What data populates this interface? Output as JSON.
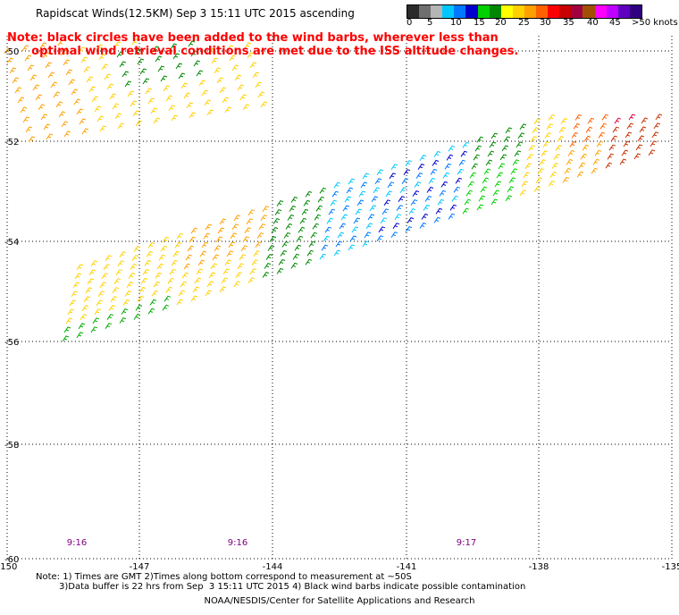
{
  "title": "Rapidscat Winds(12.5KM) Sep  3 15:11 UTC 2015 ascending",
  "note": "Note: black circles have been added to the wind barbs, wherever less than\n      optimal wind retrieval conditions are met due to the ISS altitude changes.",
  "legend": {
    "labels": [
      "0",
      "5",
      "10",
      "15",
      "20",
      "25",
      "30",
      "35",
      "40",
      "45",
      ">50 knots"
    ],
    "colors": [
      "#2b2b2b",
      "#6f6f6f",
      "#b5b5b5",
      "#00c8ff",
      "#0078ff",
      "#0000cc",
      "#00d000",
      "#008800",
      "#ffff00",
      "#ffd000",
      "#ffa000",
      "#ff6000",
      "#ff0000",
      "#c80000",
      "#a00040",
      "#a05000",
      "#ff00ff",
      "#c000ff",
      "#6000c0",
      "#300080"
    ]
  },
  "axes": {
    "lon_ticks": [
      "-150",
      "-147",
      "-144",
      "-141",
      "-138",
      "-135"
    ],
    "lat_ticks": [
      "-50",
      "-52",
      "-54",
      "-56",
      "-58",
      "-60"
    ],
    "lon_range": [
      -150,
      -135
    ],
    "lat_range": [
      -60,
      -50
    ]
  },
  "times": [
    "9:16",
    "9:16",
    "9:17"
  ],
  "footer": {
    "line1": "Note: 1) Times are GMT 2)Times along bottom correspond to measurement at ~50S",
    "line2": "3)Data buffer is 22 hrs from Sep  3 15:11 UTC 2015 4) Black wind barbs indicate possible contamination",
    "line3": "NOAA/NESDIS/Center for Satellite Applications and Research"
  }
}
